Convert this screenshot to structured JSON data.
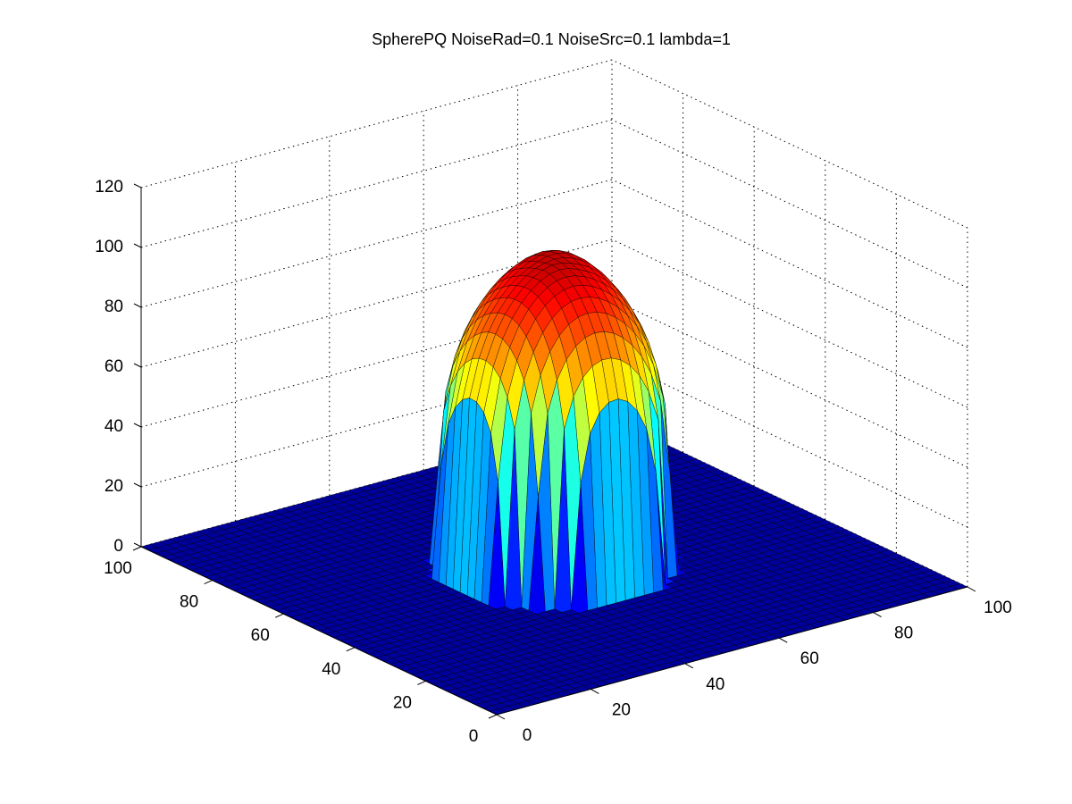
{
  "chart_data": {
    "type": "surface",
    "title": "SpherePQ NoiseRad=0.1 NoiseSrc=0.1 lambda=1",
    "xlabel": "",
    "ylabel": "",
    "zlabel": "",
    "xlim": [
      0,
      100
    ],
    "ylim": [
      0,
      100
    ],
    "zlim": [
      0,
      120
    ],
    "x_ticks": [
      0,
      20,
      40,
      60,
      80,
      100
    ],
    "y_ticks": [
      0,
      20,
      40,
      60,
      80,
      100
    ],
    "z_ticks": [
      0,
      20,
      40,
      60,
      80,
      100,
      120
    ],
    "grid": true,
    "colormap": "jet",
    "colors": {
      "background": "#ffffff",
      "floor": "#00007f"
    },
    "surface": {
      "description_of_values": "height field, zero outside a centred disc, near-hemispherical dome with two peaks near the top",
      "center": [
        50,
        50
      ],
      "disc_radius": 20,
      "peak_height": 106,
      "samples": {
        "x": [
          30,
          35,
          40,
          45,
          50,
          55,
          60,
          65,
          70
        ],
        "z_along_x_at_y50": [
          0,
          60,
          84,
          97,
          101,
          97,
          84,
          60,
          0
        ]
      }
    }
  }
}
